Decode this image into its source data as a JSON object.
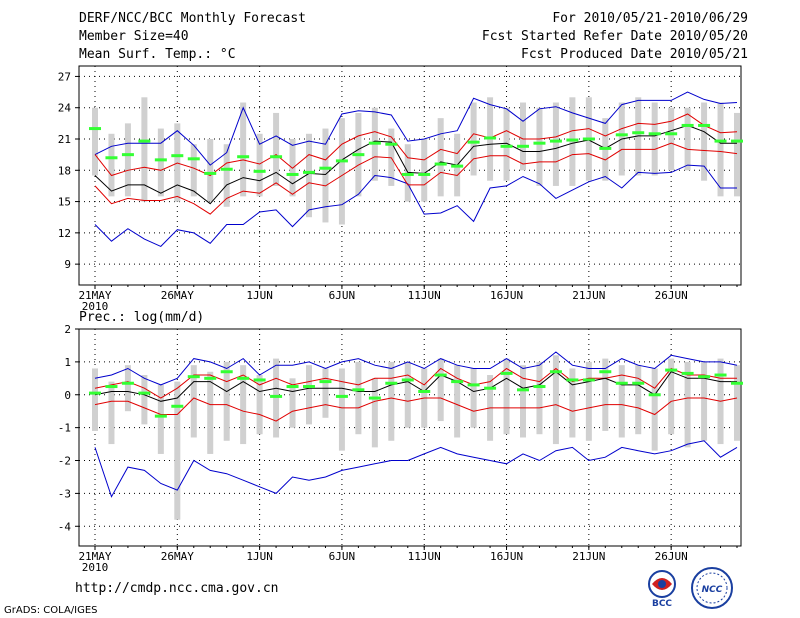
{
  "header": {
    "title": "DERF/NCC/BCC Monthly Forecast",
    "member": "Member Size=40",
    "variable": "Mean Surf. Temp.: °C",
    "period": "For 2010/05/21-2010/06/29",
    "started": "Fcst Started Refer Date 2010/05/20",
    "produced": "Fcst Produced Date 2010/05/21"
  },
  "footer": {
    "url": "http://cmdp.ncc.cma.gov.cn",
    "credit": "GrADS: COLA/IGES",
    "logo1": "BCC",
    "logo2": "NCC"
  },
  "colors": {
    "median": "#000000",
    "percentile": "#e00000",
    "extreme": "#0000cc",
    "box": "#d0d0d0",
    "mean": "#33ff33"
  },
  "chart_data": [
    {
      "type": "line",
      "title": "Mean Surf. Temp.: °C",
      "x_labels": [
        "21MAY",
        "26MAY",
        "1JUN",
        "6JUN",
        "11JUN",
        "16JUN",
        "21JUN",
        "26JUN"
      ],
      "year_label": "2010",
      "ylim": [
        7,
        28
      ],
      "y_ticks": [
        9,
        12,
        15,
        18,
        21,
        24,
        27
      ],
      "grid": true,
      "days": 40,
      "series": [
        {
          "name": "max",
          "values": [
            12.8,
            11.2,
            12.4,
            11.4,
            10.7,
            12.3,
            12.0,
            11.0,
            12.8,
            12.8,
            14.0,
            14.2,
            12.6,
            14.2,
            14.5,
            14.7,
            15.7,
            17.5,
            17.3,
            16.7,
            13.8,
            13.9,
            14.6,
            13.1,
            16.3,
            16.5,
            17.4,
            16.7,
            15.3,
            16.1,
            16.9,
            17.4,
            16.3,
            17.8,
            17.7,
            17.8,
            18.5,
            18.4,
            16.3,
            16.3
          ]
        },
        {
          "name": "min",
          "values": [
            19.5,
            20.3,
            20.6,
            20.6,
            20.6,
            21.8,
            20.4,
            18.5,
            19.7,
            24.0,
            20.5,
            21.3,
            20.4,
            20.8,
            20.5,
            23.4,
            23.7,
            23.6,
            23.3,
            20.8,
            21.0,
            21.5,
            21.8,
            24.9,
            24.3,
            23.9,
            22.7,
            23.9,
            24.1,
            23.5,
            23.0,
            22.5,
            24.3,
            24.7,
            24.7,
            24.7,
            25.5,
            24.8,
            24.4,
            24.5
          ]
        },
        {
          "name": "lower",
          "values": [
            16.5,
            14.8,
            15.3,
            15.1,
            15.1,
            15.5,
            14.8,
            13.8,
            15.3,
            16.0,
            15.8,
            16.8,
            15.7,
            16.8,
            16.5,
            17.5,
            18.5,
            19.3,
            19.2,
            16.6,
            16.6,
            17.8,
            17.5,
            19.1,
            19.4,
            19.4,
            18.6,
            18.8,
            18.8,
            19.5,
            19.6,
            19.0,
            20.0,
            20.0,
            20.0,
            20.6,
            20.0,
            19.9,
            19.8,
            19.6
          ]
        },
        {
          "name": "upper",
          "values": [
            19.5,
            17.5,
            18.0,
            18.3,
            18.0,
            18.7,
            18.2,
            17.5,
            18.7,
            19.0,
            18.6,
            19.5,
            18.2,
            19.5,
            19.0,
            20.5,
            21.3,
            21.7,
            21.2,
            19.2,
            19.0,
            20.0,
            19.6,
            21.5,
            21.1,
            21.8,
            21.0,
            21.0,
            21.2,
            21.8,
            22.0,
            21.3,
            22.0,
            22.5,
            22.4,
            22.7,
            23.4,
            22.3,
            21.6,
            21.7
          ]
        },
        {
          "name": "median",
          "values": [
            17.5,
            16.0,
            16.6,
            16.6,
            15.8,
            16.6,
            16.0,
            14.8,
            16.6,
            17.3,
            17.0,
            17.8,
            16.7,
            17.7,
            17.6,
            19.0,
            20.0,
            20.8,
            20.7,
            17.8,
            17.7,
            18.8,
            18.5,
            20.3,
            20.5,
            20.6,
            19.8,
            19.8,
            20.1,
            20.6,
            20.9,
            20.1,
            21.0,
            21.3,
            21.3,
            21.8,
            22.3,
            21.7,
            20.6,
            20.6
          ]
        },
        {
          "name": "mean",
          "values": [
            22.0,
            19.2,
            19.5,
            20.8,
            19.0,
            19.4,
            19.1,
            17.7,
            18.1,
            19.3,
            17.9,
            19.3,
            17.6,
            17.8,
            18.2,
            18.9,
            19.5,
            20.6,
            20.5,
            17.6,
            17.6,
            18.6,
            18.4,
            20.7,
            21.1,
            20.3,
            20.3,
            20.6,
            20.8,
            20.9,
            21.0,
            20.1,
            21.4,
            21.6,
            21.5,
            21.5,
            22.3,
            22.3,
            20.8,
            20.8
          ]
        },
        {
          "name": "box_low",
          "values": [
            17.5,
            15.5,
            15.5,
            15.0,
            15.5,
            15.0,
            15.5,
            15.0,
            14.5,
            15.5,
            15.5,
            16.5,
            15.5,
            13.5,
            13.0,
            12.8,
            15.5,
            17.0,
            16.5,
            15.0,
            15.0,
            15.5,
            15.5,
            17.5,
            17.0,
            17.0,
            18.0,
            16.5,
            16.5,
            16.5,
            17.0,
            17.0,
            17.5,
            17.5,
            17.5,
            18.0,
            18.0,
            17.0,
            15.5,
            15.5
          ]
        },
        {
          "name": "box_high",
          "values": [
            24.0,
            21.5,
            22.5,
            25.0,
            22.0,
            22.5,
            20.5,
            21.0,
            20.5,
            24.5,
            21.5,
            23.5,
            21.0,
            21.5,
            22.0,
            23.0,
            23.5,
            24.0,
            22.0,
            20.5,
            21.0,
            23.0,
            21.5,
            24.5,
            25.0,
            24.0,
            24.5,
            24.0,
            24.5,
            25.0,
            25.0,
            23.0,
            24.5,
            25.0,
            24.5,
            24.0,
            24.0,
            24.5,
            24.5,
            23.5
          ]
        }
      ]
    },
    {
      "type": "line",
      "title": "Prec.: log(mm/d)",
      "x_labels": [
        "21MAY",
        "26MAY",
        "1JUN",
        "6JUN",
        "11JUN",
        "16JUN",
        "21JUN",
        "26JUN"
      ],
      "year_label": "2010",
      "ylim": [
        -4.6,
        2
      ],
      "y_ticks": [
        -4,
        -3,
        -2,
        -1,
        0,
        1,
        2
      ],
      "grid": true,
      "days": 40,
      "series": [
        {
          "name": "max",
          "values": [
            -1.6,
            -3.1,
            -2.2,
            -2.3,
            -2.7,
            -2.9,
            -2.0,
            -2.3,
            -2.4,
            -2.6,
            -2.8,
            -3.0,
            -2.5,
            -2.6,
            -2.5,
            -2.3,
            -2.2,
            -2.1,
            -2.0,
            -2.0,
            -1.8,
            -1.6,
            -1.8,
            -1.9,
            -2.0,
            -2.1,
            -1.8,
            -2.0,
            -1.7,
            -1.6,
            -2.0,
            -1.9,
            -1.6,
            -1.7,
            -1.8,
            -1.7,
            -1.5,
            -1.4,
            -1.9,
            -1.6
          ]
        },
        {
          "name": "min",
          "values": [
            0.5,
            0.6,
            0.8,
            0.5,
            0.3,
            0.5,
            1.1,
            1.0,
            0.8,
            1.1,
            0.6,
            0.9,
            0.9,
            1.0,
            0.8,
            1.0,
            1.1,
            0.9,
            0.8,
            1.0,
            0.8,
            1.1,
            0.9,
            0.8,
            0.8,
            1.1,
            0.8,
            0.9,
            1.3,
            0.9,
            0.8,
            0.8,
            1.1,
            0.9,
            0.8,
            1.2,
            1.1,
            1.0,
            1.0,
            0.9
          ]
        },
        {
          "name": "lower",
          "values": [
            -0.3,
            -0.2,
            -0.2,
            -0.4,
            -0.6,
            -0.6,
            -0.1,
            -0.3,
            -0.3,
            -0.5,
            -0.6,
            -0.8,
            -0.5,
            -0.4,
            -0.3,
            -0.4,
            -0.4,
            -0.2,
            -0.1,
            -0.2,
            -0.1,
            -0.1,
            -0.3,
            -0.5,
            -0.4,
            -0.4,
            -0.4,
            -0.4,
            -0.3,
            -0.5,
            -0.4,
            -0.3,
            -0.3,
            -0.4,
            -0.6,
            -0.2,
            -0.1,
            -0.1,
            -0.2,
            -0.1
          ]
        },
        {
          "name": "upper",
          "values": [
            0.2,
            0.3,
            0.4,
            0.2,
            -0.1,
            0.2,
            0.6,
            0.6,
            0.4,
            0.6,
            0.3,
            0.5,
            0.3,
            0.4,
            0.5,
            0.4,
            0.3,
            0.5,
            0.5,
            0.6,
            0.3,
            0.8,
            0.5,
            0.3,
            0.4,
            0.8,
            0.5,
            0.4,
            0.8,
            0.4,
            0.5,
            0.5,
            0.6,
            0.5,
            0.2,
            0.8,
            0.6,
            0.6,
            0.5,
            0.5
          ]
        },
        {
          "name": "median",
          "values": [
            0.0,
            0.1,
            0.1,
            0.0,
            -0.2,
            -0.1,
            0.4,
            0.4,
            0.1,
            0.4,
            0.1,
            0.2,
            0.1,
            0.2,
            0.2,
            0.2,
            0.1,
            0.1,
            0.3,
            0.4,
            0.1,
            0.6,
            0.4,
            0.1,
            0.2,
            0.5,
            0.2,
            0.3,
            0.7,
            0.3,
            0.4,
            0.5,
            0.3,
            0.3,
            0.0,
            0.7,
            0.5,
            0.5,
            0.4,
            0.4
          ]
        },
        {
          "name": "mean",
          "values": [
            0.05,
            0.25,
            0.35,
            0.05,
            -0.65,
            -0.35,
            0.55,
            0.5,
            0.7,
            0.5,
            0.45,
            -0.05,
            0.25,
            0.25,
            0.4,
            -0.05,
            0.15,
            -0.1,
            0.35,
            0.45,
            0.1,
            0.6,
            0.4,
            0.3,
            0.2,
            0.65,
            0.15,
            0.25,
            0.7,
            0.45,
            0.45,
            0.7,
            0.35,
            0.35,
            0.0,
            0.75,
            0.65,
            0.55,
            0.6,
            0.35
          ]
        },
        {
          "name": "box_low",
          "values": [
            -1.1,
            -1.5,
            -0.5,
            -0.9,
            -1.8,
            -3.8,
            -1.3,
            -1.8,
            -1.4,
            -1.5,
            -1.2,
            -1.3,
            -1.0,
            -0.9,
            -0.7,
            -1.7,
            -1.2,
            -1.6,
            -1.4,
            -1.0,
            -1.0,
            -0.8,
            -1.3,
            -1.0,
            -1.4,
            -1.2,
            -1.3,
            -1.2,
            -1.5,
            -1.3,
            -1.4,
            -1.1,
            -1.3,
            -1.2,
            -1.7,
            -1.2,
            -1.6,
            -1.4,
            -1.5,
            -1.4
          ]
        },
        {
          "name": "box_high",
          "values": [
            0.8,
            0.4,
            0.9,
            0.6,
            0.3,
            0.4,
            0.9,
            0.7,
            1.0,
            0.9,
            0.6,
            1.1,
            0.5,
            0.9,
            0.8,
            0.8,
            1.0,
            0.5,
            1.0,
            1.0,
            0.8,
            1.1,
            0.9,
            0.8,
            0.6,
            1.1,
            0.9,
            1.0,
            1.2,
            0.8,
            1.0,
            1.1,
            0.9,
            0.9,
            0.8,
            1.1,
            1.0,
            1.0,
            1.1,
            0.9
          ]
        }
      ]
    }
  ]
}
